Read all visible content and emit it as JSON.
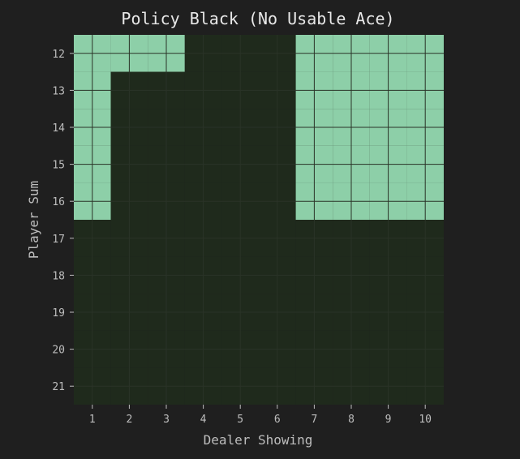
{
  "chart_data": {
    "type": "heatmap",
    "title": "Policy Black (No Usable Ace)",
    "xlabel": "Dealer Showing",
    "ylabel": "Player Sum",
    "x_categories": [
      "1",
      "2",
      "3",
      "4",
      "5",
      "6",
      "7",
      "8",
      "9",
      "10"
    ],
    "y_categories": [
      "12",
      "13",
      "14",
      "15",
      "16",
      "17",
      "18",
      "19",
      "20",
      "21"
    ],
    "grid": true,
    "colors": {
      "background": "#1f1f1f",
      "hit": "#8dcfa8",
      "stick": "#1f2a1c",
      "grid_line": "#2f3a2c",
      "text": "#bdbdbd",
      "title": "#e8e8e8"
    },
    "values": [
      [
        1,
        1,
        1,
        0,
        0,
        0,
        1,
        1,
        1,
        1
      ],
      [
        1,
        0,
        0,
        0,
        0,
        0,
        1,
        1,
        1,
        1
      ],
      [
        1,
        0,
        0,
        0,
        0,
        0,
        1,
        1,
        1,
        1
      ],
      [
        1,
        0,
        0,
        0,
        0,
        0,
        1,
        1,
        1,
        1
      ],
      [
        1,
        0,
        0,
        0,
        0,
        0,
        1,
        1,
        1,
        1
      ],
      [
        0,
        0,
        0,
        0,
        0,
        0,
        0,
        0,
        0,
        0
      ],
      [
        0,
        0,
        0,
        0,
        0,
        0,
        0,
        0,
        0,
        0
      ],
      [
        0,
        0,
        0,
        0,
        0,
        0,
        0,
        0,
        0,
        0
      ],
      [
        0,
        0,
        0,
        0,
        0,
        0,
        0,
        0,
        0,
        0
      ],
      [
        0,
        0,
        0,
        0,
        0,
        0,
        0,
        0,
        0,
        0
      ]
    ]
  }
}
